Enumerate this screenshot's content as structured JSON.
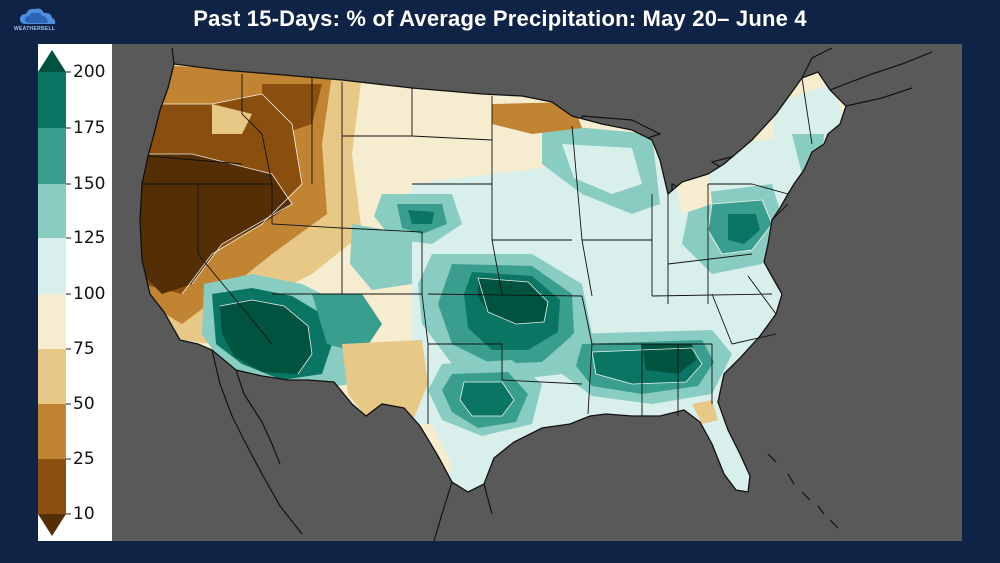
{
  "header": {
    "title": "Past 15-Days:  % of Average Precipitation: May 20– June 4",
    "logo_text": "WEATHERBELL"
  },
  "colorbar": {
    "ticks": [
      "200",
      "175",
      "150",
      "125",
      "100",
      "75",
      "50",
      "25",
      "10"
    ],
    "colors": [
      "#00533f",
      "#0b7564",
      "#3a9e8e",
      "#89ccc1",
      "#d9efec",
      "#f6ecd0",
      "#e7c886",
      "#c08432",
      "#8a4f0e",
      "#542f06"
    ]
  },
  "map": {
    "background_color": "#595959",
    "boundary_color": "#111111"
  }
}
